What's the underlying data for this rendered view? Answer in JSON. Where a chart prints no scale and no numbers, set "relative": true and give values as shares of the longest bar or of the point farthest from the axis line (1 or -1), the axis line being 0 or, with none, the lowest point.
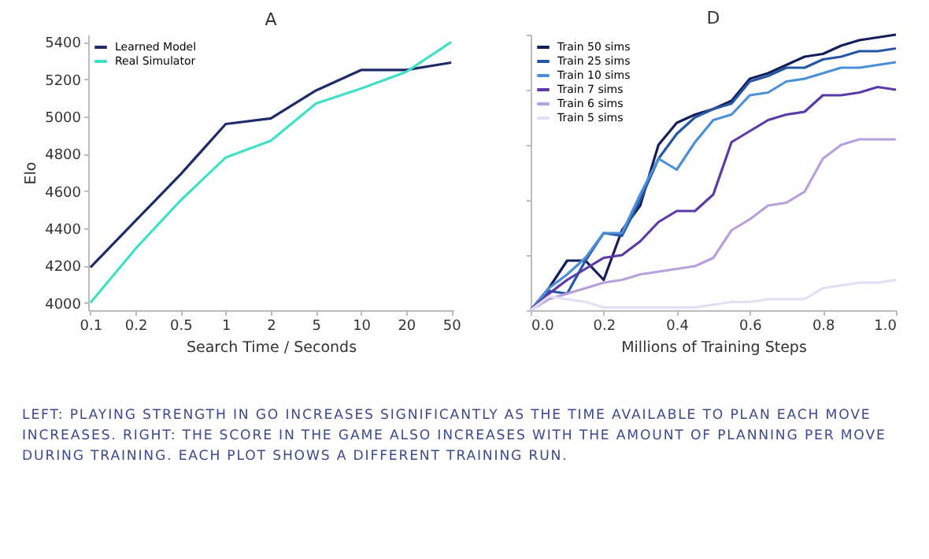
{
  "chart_data": [
    {
      "type": "line",
      "title": "A",
      "xlabel": "Search Time / Seconds",
      "ylabel": "Elo",
      "categories": [
        "0.1",
        "0.2",
        "0.5",
        "1",
        "2",
        "5",
        "10",
        "20",
        "50"
      ],
      "ylim": [
        3960,
        5440
      ],
      "yticks": [
        4000,
        4200,
        4400,
        4600,
        4800,
        5000,
        5200,
        5400
      ],
      "grid": false,
      "legend": "top left",
      "series": [
        {
          "name": "Learned Model",
          "color": "#1f2a6b",
          "values": [
            4190,
            4440,
            4690,
            4960,
            4990,
            5140,
            5250,
            5250,
            5290
          ]
        },
        {
          "name": "Real Simulator",
          "color": "#3fe0c5",
          "values": [
            4000,
            4290,
            4550,
            4780,
            4870,
            5070,
            5150,
            5240,
            5400
          ]
        }
      ],
      "annotations": [
        "LEFT: PLAYING STRENGTH IN GO INCREASES SIGNIFICANTLY AS THE TIME AVAILABLE TO PLAN EACH MOVE INCREASES. RIGHT: THE SCORE IN THE GAME ALSO INCREASES WITH THE AMOUNT OF PLANNING PER MOVE DURING TRAINING. EACH PLOT SHOWS A DIFFERENT TRAINING RUN."
      ]
    },
    {
      "type": "line",
      "title": "D",
      "xlabel": "Millions of Training Steps",
      "relative": true,
      "xlim": [
        0,
        1
      ],
      "xticks": [
        {
          "value": 0,
          "label": "0.0"
        },
        0.2,
        0.4,
        0.6,
        0.8,
        {
          "value": 1,
          "label": "1.0"
        }
      ],
      "grid": false,
      "legend": "top left",
      "x": [
        0,
        0.05,
        0.1,
        0.15,
        0.2,
        0.25,
        0.3,
        0.35,
        0.4,
        0.45,
        0.5,
        0.55,
        0.6,
        0.65,
        0.7,
        0.75,
        0.8,
        0.85,
        0.9,
        0.95,
        1
      ],
      "series": [
        {
          "name": "Train 50 sims",
          "color": "#141e5a",
          "values": [
            0,
            0.08,
            0.18,
            0.18,
            0.11,
            0.29,
            0.38,
            0.6,
            0.68,
            0.71,
            0.73,
            0.76,
            0.84,
            0.86,
            0.89,
            0.92,
            0.93,
            0.96,
            0.98,
            0.99,
            1
          ]
        },
        {
          "name": "Train 25 sims",
          "color": "#2557a7",
          "values": [
            0,
            0.07,
            0.06,
            0.18,
            0.28,
            0.27,
            0.4,
            0.55,
            0.64,
            0.7,
            0.73,
            0.75,
            0.83,
            0.85,
            0.88,
            0.88,
            0.91,
            0.92,
            0.94,
            0.94,
            0.95
          ]
        },
        {
          "name": "Train 10 sims",
          "color": "#4a8fd8",
          "values": [
            0,
            0.08,
            0.13,
            0.19,
            0.28,
            0.28,
            0.42,
            0.55,
            0.51,
            0.61,
            0.69,
            0.71,
            0.78,
            0.79,
            0.83,
            0.84,
            0.86,
            0.88,
            0.88,
            0.89,
            0.9
          ]
        },
        {
          "name": "Train 7 sims",
          "color": "#5b3aa8",
          "values": [
            0,
            0.06,
            0.11,
            0.15,
            0.19,
            0.2,
            0.25,
            0.32,
            0.36,
            0.36,
            0.42,
            0.61,
            0.65,
            0.69,
            0.71,
            0.72,
            0.78,
            0.78,
            0.79,
            0.81,
            0.8
          ]
        },
        {
          "name": "Train 6 sims",
          "color": "#b7a0dc",
          "values": [
            0,
            0.04,
            0.06,
            0.08,
            0.1,
            0.11,
            0.13,
            0.14,
            0.15,
            0.16,
            0.19,
            0.29,
            0.33,
            0.38,
            0.39,
            0.43,
            0.55,
            0.6,
            0.62,
            0.62,
            0.62
          ]
        },
        {
          "name": "Train 5 sims",
          "color": "#e3def3",
          "values": [
            0,
            0.05,
            0.04,
            0.03,
            0.01,
            0.01,
            0.01,
            0.01,
            0.01,
            0.01,
            0.02,
            0.03,
            0.03,
            0.04,
            0.04,
            0.04,
            0.08,
            0.09,
            0.1,
            0.1,
            0.11
          ]
        }
      ]
    }
  ]
}
